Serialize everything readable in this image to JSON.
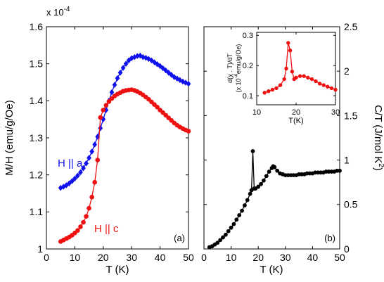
{
  "chart_data": [
    {
      "type": "scatter",
      "panel_label": "(a)",
      "xlabel": "T (K)",
      "ylabel": "M/H (emu/g/Oe)",
      "y_exponent_label": "x 10",
      "y_exponent": "-4",
      "xlim": [
        0,
        50
      ],
      "ylim": [
        1.0,
        1.6
      ],
      "xticks": [
        "0",
        "10",
        "20",
        "30",
        "40",
        "50"
      ],
      "yticks": [
        "1",
        "1.1",
        "1.2",
        "1.3",
        "1.4",
        "1.5",
        "1.6"
      ],
      "annotations": [
        "H || a",
        "H || c"
      ],
      "series": [
        {
          "label": "H || a",
          "color": "#1010ee",
          "marker": "diamond",
          "x": [
            5,
            6,
            7,
            8,
            9,
            10,
            11,
            12,
            13,
            14,
            15,
            16,
            17,
            18,
            19,
            20,
            21,
            22,
            23,
            24,
            25,
            26,
            27,
            28,
            29,
            30,
            31,
            32,
            33,
            34,
            35,
            36,
            37,
            38,
            39,
            40,
            41,
            42,
            43,
            44,
            45,
            46,
            47,
            48,
            49,
            50
          ],
          "y": [
            1.165,
            1.168,
            1.172,
            1.177,
            1.183,
            1.19,
            1.198,
            1.207,
            1.218,
            1.231,
            1.246,
            1.263,
            1.282,
            1.303,
            1.326,
            1.35,
            1.375,
            1.4,
            1.423,
            1.443,
            1.461,
            1.476,
            1.489,
            1.5,
            1.509,
            1.515,
            1.518,
            1.521,
            1.522,
            1.518,
            1.516,
            1.513,
            1.509,
            1.504,
            1.499,
            1.494,
            1.488,
            1.482,
            1.476,
            1.47,
            1.464,
            1.46,
            1.456,
            1.452,
            1.449,
            1.446
          ]
        },
        {
          "label": "H || c",
          "color": "#ee1010",
          "marker": "circle",
          "x": [
            5,
            6,
            7,
            8,
            9,
            10,
            11,
            12,
            13,
            14,
            15,
            16,
            17,
            18,
            19,
            20,
            21,
            22,
            23,
            24,
            25,
            26,
            27,
            28,
            29,
            30,
            31,
            32,
            33,
            34,
            35,
            36,
            37,
            38,
            39,
            40,
            41,
            42,
            43,
            44,
            45,
            46,
            47,
            48,
            49,
            50
          ],
          "y": [
            1.02,
            1.024,
            1.028,
            1.032,
            1.037,
            1.043,
            1.05,
            1.06,
            1.072,
            1.088,
            1.11,
            1.14,
            1.18,
            1.24,
            1.355,
            1.375,
            1.388,
            1.398,
            1.406,
            1.413,
            1.418,
            1.422,
            1.426,
            1.428,
            1.429,
            1.43,
            1.428,
            1.425,
            1.421,
            1.416,
            1.41,
            1.404,
            1.397,
            1.39,
            1.383,
            1.375,
            1.368,
            1.361,
            1.354,
            1.347,
            1.34,
            1.334,
            1.329,
            1.325,
            1.321,
            1.318
          ]
        }
      ]
    },
    {
      "type": "scatter",
      "panel_label": "(b)",
      "xlabel": "T (K)",
      "ylabel": "C/T (J/mol K",
      "ylabel_sup": "2",
      "ylabel_end": ")",
      "xlim": [
        0,
        50
      ],
      "ylim": [
        0,
        2.5
      ],
      "xticks": [
        "0",
        "10",
        "20",
        "30",
        "40",
        "50"
      ],
      "yticks": [
        "0",
        "0.5",
        "1",
        "1.5",
        "2",
        "2.5"
      ],
      "series": [
        {
          "label": "C/T",
          "color": "#000000",
          "marker": "circle",
          "x": [
            2,
            3,
            4,
            5,
            6,
            7,
            8,
            9,
            10,
            11,
            12,
            13,
            14,
            15,
            16,
            17,
            17.5,
            18,
            18.5,
            19,
            20,
            21,
            22,
            23,
            24,
            25,
            25.5,
            26,
            27,
            28,
            29,
            30,
            31,
            32,
            33,
            34,
            35,
            36,
            37,
            38,
            39,
            40,
            41,
            42,
            43,
            44,
            45,
            46,
            47,
            48,
            49,
            50
          ],
          "y": [
            0.02,
            0.03,
            0.05,
            0.07,
            0.1,
            0.13,
            0.16,
            0.2,
            0.24,
            0.28,
            0.33,
            0.38,
            0.43,
            0.49,
            0.55,
            0.62,
            0.66,
            1.1,
            0.68,
            0.68,
            0.7,
            0.73,
            0.77,
            0.82,
            0.87,
            0.91,
            0.93,
            0.92,
            0.88,
            0.85,
            0.84,
            0.83,
            0.83,
            0.83,
            0.83,
            0.83,
            0.84,
            0.84,
            0.84,
            0.85,
            0.85,
            0.85,
            0.86,
            0.86,
            0.86,
            0.86,
            0.87,
            0.87,
            0.87,
            0.87,
            0.88,
            0.88
          ]
        }
      ],
      "inset": {
        "ylabel_line1": "d(χ . T)/dT",
        "ylabel_line2_prefix": "(x 10",
        "ylabel_line2_sup": "-4",
        "ylabel_line2_suffix": "emu/g/Oe)",
        "xlabel": "T(K)",
        "xlim": [
          10,
          30
        ],
        "ylim": [
          0.07,
          0.31
        ],
        "xticks": [
          "10",
          "20",
          "30"
        ],
        "yticks": [
          "0.1",
          "0.2",
          "0.3"
        ],
        "color": "#ee1010",
        "x": [
          12,
          13,
          14,
          15,
          16,
          17,
          17.5,
          18,
          18.5,
          19,
          19.5,
          20,
          21,
          22,
          23,
          24,
          25,
          26,
          27,
          28,
          29,
          30
        ],
        "y": [
          0.11,
          0.115,
          0.12,
          0.125,
          0.135,
          0.155,
          0.19,
          0.275,
          0.25,
          0.18,
          0.155,
          0.16,
          0.165,
          0.165,
          0.16,
          0.155,
          0.148,
          0.14,
          0.135,
          0.13,
          0.125,
          0.12
        ]
      }
    }
  ]
}
